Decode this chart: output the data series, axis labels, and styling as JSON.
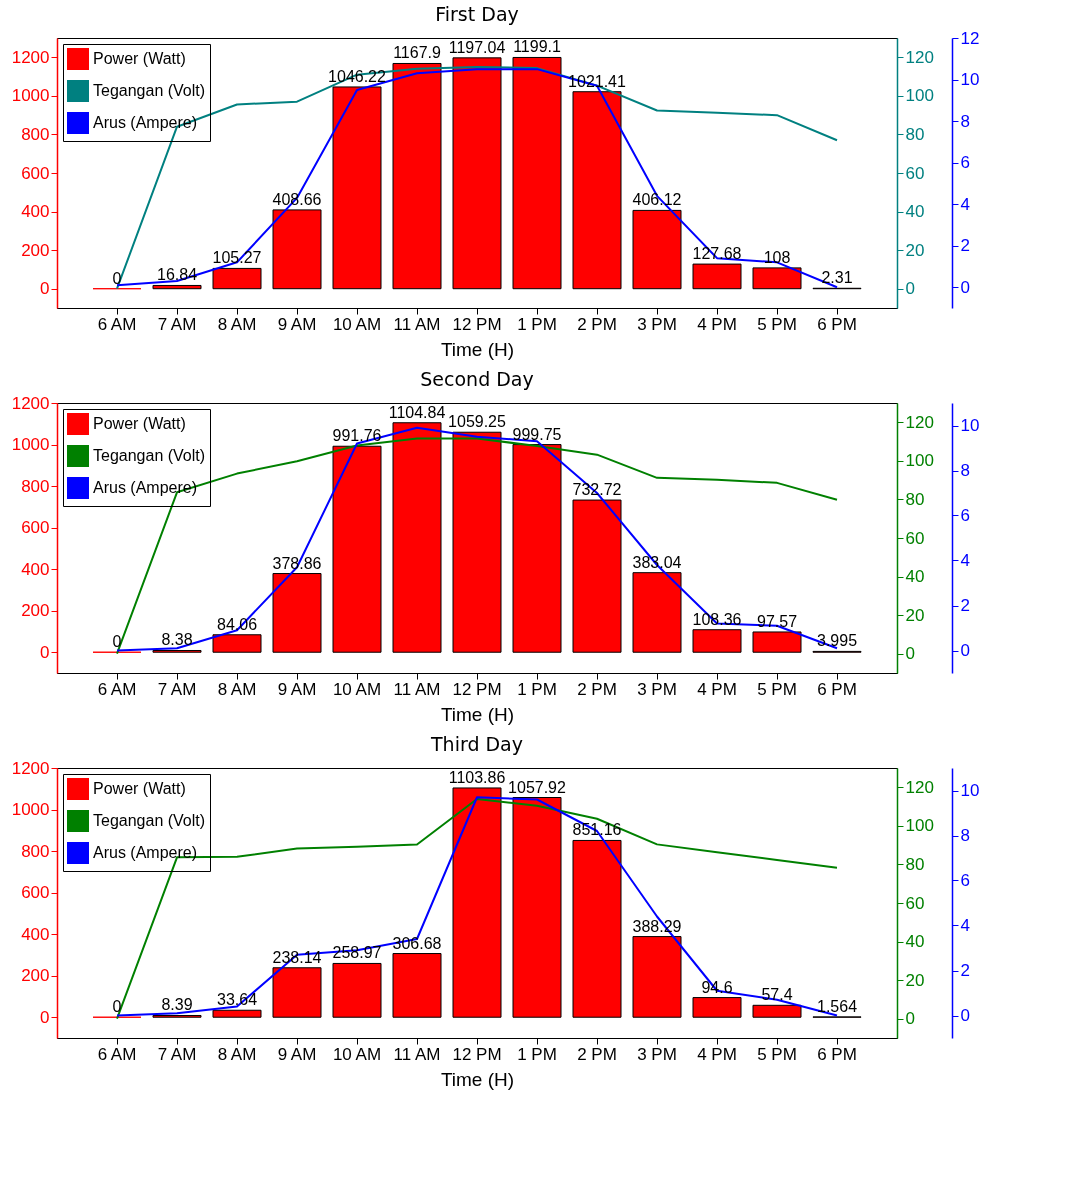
{
  "chart_data": [
    {
      "type": "bar",
      "title": "First Day",
      "xlabel": "Time (H)",
      "categories": [
        "6 AM",
        "7 AM",
        "8 AM",
        "9 AM",
        "10 AM",
        "11 AM",
        "12 PM",
        "1 PM",
        "2 PM",
        "3 PM",
        "4 PM",
        "5 PM",
        "6 PM"
      ],
      "series": [
        {
          "name": "Power (Watt)",
          "color": "#ff0000",
          "values": [
            0,
            16.84,
            105.27,
            408.66,
            1046.22,
            1167.9,
            1197.04,
            1199.1,
            1021.41,
            406.12,
            127.68,
            108,
            2.31
          ],
          "value_labels": [
            "0",
            "16.84",
            "105.27",
            "408.66",
            "1046.22",
            "1167.9",
            "1197.04",
            "1199.1",
            "1021.41",
            "406.12",
            "127.68",
            "108",
            "2.31"
          ]
        },
        {
          "name": "Tegangan (Volt)",
          "type": "line",
          "axis": "y2",
          "color": "#008080",
          "values": [
            0,
            84,
            95.5,
            97,
            111,
            114,
            115,
            114.4,
            105.3,
            92.4,
            91.2,
            90,
            77
          ]
        },
        {
          "name": "Arus (Ampere)",
          "type": "line",
          "axis": "y3",
          "color": "#0000ff",
          "values": [
            0.1,
            0.3,
            1.2,
            4.3,
            9.5,
            10.3,
            10.5,
            10.5,
            9.7,
            4.4,
            1.4,
            1.2,
            0
          ]
        }
      ],
      "ylim": [
        -100,
        1300
      ],
      "yticks": [
        0,
        200,
        400,
        600,
        800,
        1000,
        1200
      ],
      "y2lim": [
        -10,
        130
      ],
      "y2ticks": [
        0,
        20,
        40,
        60,
        80,
        100,
        120
      ],
      "y3lim": [
        -1,
        12
      ],
      "y3ticks": [
        0,
        2,
        4,
        6,
        8,
        10,
        12
      ],
      "legend": "top left"
    },
    {
      "type": "bar",
      "title": "Second Day",
      "xlabel": "Time (H)",
      "categories": [
        "6 AM",
        "7 AM",
        "8 AM",
        "9 AM",
        "10 AM",
        "11 AM",
        "12 PM",
        "1 PM",
        "2 PM",
        "3 PM",
        "4 PM",
        "5 PM",
        "6 PM"
      ],
      "series": [
        {
          "name": "Power (Watt)",
          "color": "#ff0000",
          "values": [
            0,
            8.38,
            84.06,
            378.86,
            991.76,
            1104.84,
            1059.25,
            999.75,
            732.72,
            383.04,
            108.36,
            97.57,
            3.995
          ],
          "value_labels": [
            "0",
            "8.38",
            "84.06",
            "378.86",
            "991.76",
            "1104.84",
            "1059.25",
            "999.75",
            "732.72",
            "383.04",
            "108.36",
            "97.57",
            "3.995"
          ]
        },
        {
          "name": "Tegangan (Volt)",
          "type": "line",
          "axis": "y2",
          "color": "#008000",
          "values": [
            0,
            83.7,
            93.4,
            99.8,
            108,
            111.6,
            111.6,
            107.7,
            103.2,
            91.2,
            90.2,
            88.6,
            79.8
          ]
        },
        {
          "name": "Arus (Ampere)",
          "type": "line",
          "axis": "y3",
          "color": "#0000ff",
          "values": [
            0,
            0.1,
            0.9,
            3.7,
            9.2,
            9.9,
            9.5,
            9.3,
            7,
            3.8,
            1.2,
            1.1,
            0.1
          ]
        }
      ],
      "ylim": [
        -100,
        1200
      ],
      "yticks": [
        0,
        200,
        400,
        600,
        800,
        1000,
        1200
      ],
      "y2lim": [
        -10,
        130
      ],
      "y2ticks": [
        0,
        20,
        40,
        60,
        80,
        100,
        120
      ],
      "y3lim": [
        -1,
        11
      ],
      "y3ticks": [
        0,
        2,
        4,
        6,
        8,
        10
      ],
      "legend": "top left"
    },
    {
      "type": "bar",
      "title": "Third Day",
      "xlabel": "Time (H)",
      "categories": [
        "6 AM",
        "7 AM",
        "8 AM",
        "9 AM",
        "10 AM",
        "11 AM",
        "12 PM",
        "1 PM",
        "2 PM",
        "3 PM",
        "4 PM",
        "5 PM",
        "6 PM"
      ],
      "series": [
        {
          "name": "Power (Watt)",
          "color": "#ff0000",
          "values": [
            0,
            8.39,
            33.64,
            238.14,
            258.97,
            306.68,
            1103.86,
            1057.92,
            851.16,
            388.29,
            94.6,
            57.4,
            1.564
          ],
          "value_labels": [
            "0",
            "8.39",
            "33.64",
            "238.14",
            "258.97",
            "306.68",
            "1103.86",
            "1057.92",
            "851.16",
            "388.29",
            "94.6",
            "57.4",
            "1.564"
          ]
        },
        {
          "name": "Tegangan (Volt)",
          "type": "line",
          "axis": "y2",
          "color": "#008000",
          "values": [
            0,
            83.7,
            84,
            88.2,
            89.2,
            90.3,
            113.9,
            110.4,
            103.7,
            90.4,
            86.3,
            82.3,
            78.3
          ]
        },
        {
          "name": "Arus (Ampere)",
          "type": "line",
          "axis": "y3",
          "color": "#0000ff",
          "values": [
            0,
            0.1,
            0.4,
            2.7,
            2.9,
            3.4,
            9.7,
            9.6,
            8.2,
            4.4,
            1.1,
            0.7,
            0
          ]
        }
      ],
      "ylim": [
        -100,
        1200
      ],
      "yticks": [
        0,
        200,
        400,
        600,
        800,
        1000,
        1200
      ],
      "y2lim": [
        -10,
        130
      ],
      "y2ticks": [
        0,
        20,
        40,
        60,
        80,
        100,
        120
      ],
      "y3lim": [
        -1,
        11
      ],
      "y3ticks": [
        0,
        2,
        4,
        6,
        8,
        10
      ],
      "legend": "top left"
    }
  ]
}
